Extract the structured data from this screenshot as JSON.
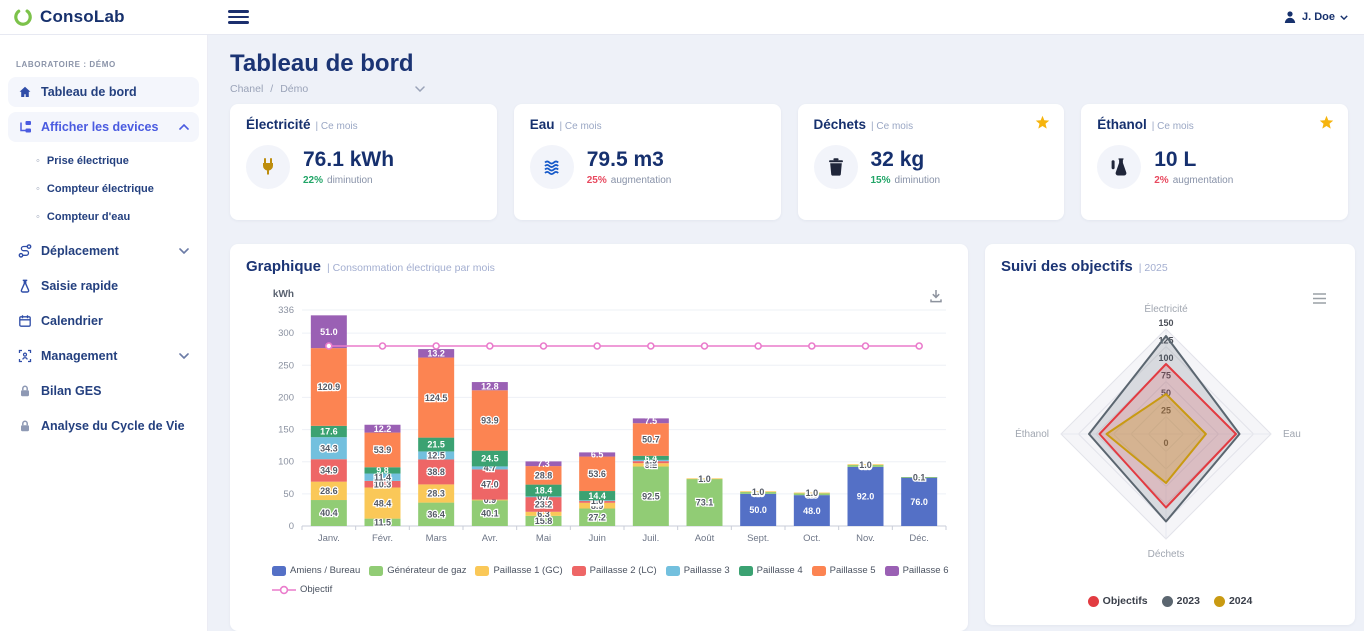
{
  "topbar": {
    "brand": "ConsoLab",
    "user": "J. Doe"
  },
  "sidebar": {
    "lab_label": "LABORATOIRE : DÉMO",
    "items": [
      {
        "label": "Tableau de bord",
        "icon": "home-icon"
      },
      {
        "label": "Afficher les devices",
        "icon": "devices-icon"
      },
      {
        "label": "Prise électrique"
      },
      {
        "label": "Compteur électrique"
      },
      {
        "label": "Compteur d'eau"
      },
      {
        "label": "Déplacement",
        "icon": "route-icon"
      },
      {
        "label": "Saisie rapide",
        "icon": "flask-icon"
      },
      {
        "label": "Calendrier",
        "icon": "calendar-icon"
      },
      {
        "label": "Management",
        "icon": "management-icon"
      },
      {
        "label": "Bilan GES",
        "icon": "lock-icon"
      },
      {
        "label": "Analyse du Cycle de Vie",
        "icon": "lock-icon"
      }
    ]
  },
  "page": {
    "title": "Tableau de bord",
    "breadcrumb": {
      "parent": "Chanel",
      "sep": "/",
      "current": "Démo"
    }
  },
  "stats": [
    {
      "title": "Électricité",
      "subtitle": "| Ce mois",
      "value": "76.1 kWh",
      "pct": "22%",
      "pct_color": "#21a567",
      "trend": "diminution",
      "icon": "plug-icon",
      "starred": false
    },
    {
      "title": "Eau",
      "subtitle": "| Ce mois",
      "value": "79.5 m3",
      "pct": "25%",
      "pct_color": "#e8495f",
      "trend": "augmentation",
      "icon": "water-icon",
      "starred": false
    },
    {
      "title": "Déchets",
      "subtitle": "| Ce mois",
      "value": "32 kg",
      "pct": "15%",
      "pct_color": "#21a567",
      "trend": "diminution",
      "icon": "trash-icon",
      "starred": true
    },
    {
      "title": "Éthanol",
      "subtitle": "| Ce mois",
      "value": "10 L",
      "pct": "2%",
      "pct_color": "#e8495f",
      "trend": "augmentation",
      "icon": "ethanol-flask-icon",
      "starred": true
    }
  ],
  "cards": {
    "graph": {
      "title": "Graphique",
      "subtitle": "| Consommation électrique par mois"
    },
    "radar": {
      "title": "Suivi des objectifs",
      "subtitle": "| 2025"
    }
  },
  "chart_data": [
    {
      "type": "bar",
      "stacked": true,
      "title": "Consommation électrique par mois",
      "ylabel": "kWh",
      "ylim": [
        0,
        336
      ],
      "yticks": [
        0,
        50,
        100,
        150,
        200,
        250,
        300,
        336
      ],
      "grid": true,
      "legend_position": "bottom",
      "categories": [
        "Janv.",
        "Févr.",
        "Mars",
        "Avr.",
        "Mai",
        "Juin",
        "Juil.",
        "Août",
        "Sept.",
        "Oct.",
        "Nov.",
        "Déc."
      ],
      "series": [
        {
          "name": "Amiens / Bureau",
          "color": "#5470c6",
          "values": [
            0,
            0,
            0,
            0,
            0,
            0,
            0,
            0,
            50,
            48,
            92,
            76
          ]
        },
        {
          "name": "Générateur de gaz",
          "color": "#91cc75",
          "values": [
            40.4,
            11.5,
            36.4,
            40.1,
            15.8,
            27.2,
            92.5,
            73.1,
            3,
            3,
            3,
            0.1
          ]
        },
        {
          "name": "Paillasse 1 (GC)",
          "color": "#fac858",
          "values": [
            28.6,
            48.4,
            28.3,
            0.9,
            6.3,
            8.9,
            5.2,
            1,
            1,
            1,
            1,
            0
          ]
        },
        {
          "name": "Paillasse 2 (LC)",
          "color": "#ee6666",
          "values": [
            34.9,
            10.3,
            38.8,
            47,
            23.2,
            2.9,
            3.2,
            0,
            0,
            0,
            0,
            0
          ]
        },
        {
          "name": "Paillasse 3",
          "color": "#73c0de",
          "values": [
            34.3,
            11.4,
            12.5,
            4.7,
            0.7,
            1,
            1.9,
            0,
            0,
            0,
            0,
            0
          ]
        },
        {
          "name": "Paillasse 4",
          "color": "#3ba272",
          "values": [
            17.6,
            9.8,
            21.5,
            24.5,
            18.4,
            14.4,
            6.4,
            0,
            0,
            0,
            0,
            0
          ]
        },
        {
          "name": "Paillasse 5",
          "color": "#fc8452",
          "values": [
            120.9,
            53.9,
            124.5,
            93.9,
            28.8,
            53.6,
            50.7,
            0,
            0,
            0,
            0,
            0
          ]
        },
        {
          "name": "Paillasse 6",
          "color": "#9a60b4",
          "values": [
            51,
            12.2,
            13.2,
            12.8,
            7.3,
            6.5,
            7.5,
            0,
            0,
            0,
            0,
            0
          ]
        }
      ],
      "line": {
        "name": "Objectif",
        "color": "#ea7ccc",
        "values": [
          280,
          280,
          280,
          280,
          280,
          280,
          280,
          280,
          280,
          280,
          280,
          280
        ]
      }
    },
    {
      "type": "radar",
      "title": "Suivi des objectifs 2025",
      "axes": [
        "Électricité",
        "Eau",
        "Déchets",
        "Éthanol"
      ],
      "rmax": 150,
      "rticks": [
        0,
        25,
        50,
        75,
        100,
        125,
        150
      ],
      "legend_position": "bottom",
      "series": [
        {
          "name": "Objectifs",
          "color": "#e23b41",
          "fill_opacity": 0.18,
          "values": [
            100,
            100,
            105,
            95
          ]
        },
        {
          "name": "2023",
          "color": "#5b6670",
          "fill_opacity": 0.18,
          "values": [
            140,
            105,
            125,
            110
          ]
        },
        {
          "name": "2024",
          "color": "#c99a12",
          "fill_opacity": 0.28,
          "values": [
            57,
            57,
            70,
            85
          ]
        }
      ]
    }
  ]
}
